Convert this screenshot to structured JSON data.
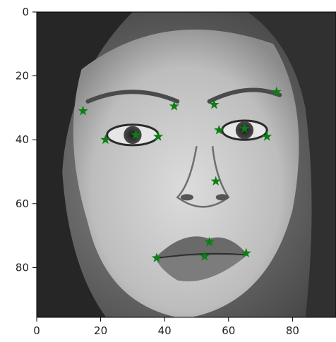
{
  "chart_data": {
    "type": "scatter",
    "title": "",
    "xlabel": "",
    "ylabel": "",
    "xlim": [
      0,
      96
    ],
    "ylim": [
      96,
      0
    ],
    "grid": false,
    "background": "grayscale face photograph (96x96 image)",
    "x_ticks": [
      {
        "value": 0,
        "label": "0"
      },
      {
        "value": 20,
        "label": "20"
      },
      {
        "value": 40,
        "label": "40"
      },
      {
        "value": 60,
        "label": "60"
      },
      {
        "value": 80,
        "label": "80"
      }
    ],
    "y_ticks": [
      {
        "value": 0,
        "label": "0"
      },
      {
        "value": 20,
        "label": "20"
      },
      {
        "value": 40,
        "label": "40"
      },
      {
        "value": 60,
        "label": "60"
      },
      {
        "value": 80,
        "label": "80"
      }
    ],
    "marker": "star",
    "marker_color": "#0b7f14",
    "series": [
      {
        "points": [
          {
            "x": 14.5,
            "y": 31
          },
          {
            "x": 21.5,
            "y": 40
          },
          {
            "x": 31,
            "y": 38.5
          },
          {
            "x": 38,
            "y": 39
          },
          {
            "x": 43,
            "y": 29.5
          },
          {
            "x": 55.5,
            "y": 29
          },
          {
            "x": 57,
            "y": 37
          },
          {
            "x": 65,
            "y": 36.5
          },
          {
            "x": 72,
            "y": 39
          },
          {
            "x": 75,
            "y": 25
          },
          {
            "x": 56,
            "y": 53
          },
          {
            "x": 37.5,
            "y": 77
          },
          {
            "x": 52.5,
            "y": 76.5
          },
          {
            "x": 54,
            "y": 72
          },
          {
            "x": 65.5,
            "y": 75.5
          }
        ]
      }
    ]
  }
}
